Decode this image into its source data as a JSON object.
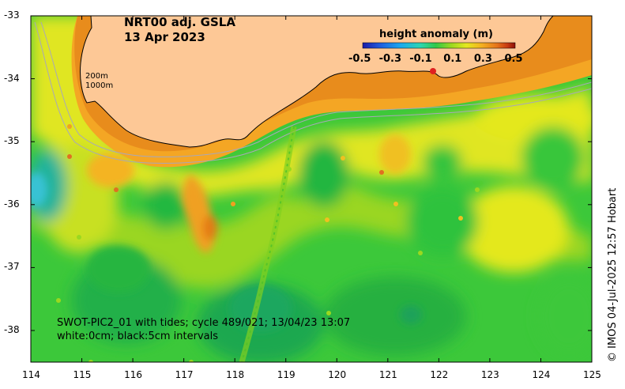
{
  "title": {
    "line1": "NRT00 adj. GSLA",
    "line2": "13 Apr 2023"
  },
  "colorbar": {
    "title": "height anomaly (m)",
    "ticks": [
      "-0.5",
      "-0.3",
      "-0.1",
      "0.1",
      "0.3",
      "0.5"
    ],
    "colors": [
      "#1a1aa6",
      "#1f5fe0",
      "#1aa9ee",
      "#2ad6b0",
      "#30c848",
      "#9ad820",
      "#e4e820",
      "#f4b020",
      "#e6741a",
      "#c63a12",
      "#8c1008"
    ]
  },
  "axes": {
    "x_ticks": [
      "114",
      "115",
      "116",
      "117",
      "118",
      "119",
      "120",
      "121",
      "122",
      "123",
      "124",
      "125"
    ],
    "y_ticks": [
      "-33",
      "-34",
      "-35",
      "-36",
      "-37",
      "-38"
    ]
  },
  "contour_labels": {
    "c200": "200m",
    "c1000": "1000m"
  },
  "swot": {
    "line1": "SWOT-PIC2_01 with tides; cycle 489/021; 13/04/23 13:07",
    "line2": "white:0cm; black:5cm intervals"
  },
  "credit": "© IMOS 04-Jul-2025 12:57 Hobart",
  "colors": {
    "land": "#fdc896",
    "sea_base": "#38c83a",
    "coast": "#000000",
    "isobath": "#a8a8b8"
  }
}
